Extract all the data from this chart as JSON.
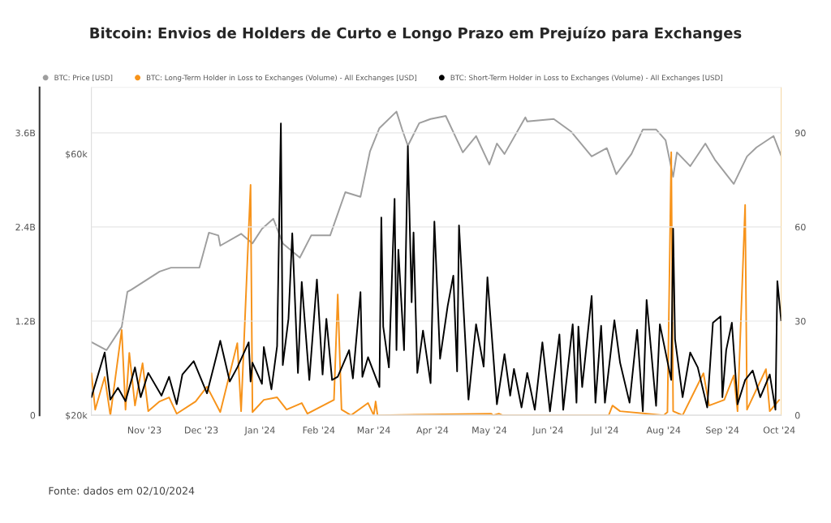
{
  "chart_data": {
    "type": "line",
    "title": "Bitcoin: Envios de Holders de Curto e Longo Prazo em Prejuízo para Exchanges",
    "annotations": [
      "Fonte: dados em 02/10/2024"
    ],
    "series": [
      {
        "name": "BTC: Price [USD]",
        "color": "#9e9e9e",
        "axis": "y3",
        "x": [
          "2023-10-04",
          "2023-10-12",
          "2023-10-20",
          "2023-10-23",
          "2023-10-25",
          "2023-11-09",
          "2023-11-15",
          "2023-11-30",
          "2023-12-05",
          "2023-12-10",
          "2023-12-11",
          "2023-12-22",
          "2023-12-28",
          "2024-01-02",
          "2024-01-08",
          "2024-01-13",
          "2024-01-22",
          "2024-01-28",
          "2024-02-07",
          "2024-02-15",
          "2024-02-23",
          "2024-02-28",
          "2024-03-04",
          "2024-03-13",
          "2024-03-16",
          "2024-03-19",
          "2024-03-25",
          "2024-03-31",
          "2024-04-08",
          "2024-04-17",
          "2024-04-24",
          "2024-05-01",
          "2024-05-05",
          "2024-05-09",
          "2024-05-20",
          "2024-05-21",
          "2024-06-04",
          "2024-06-13",
          "2024-06-24",
          "2024-07-02",
          "2024-07-07",
          "2024-07-15",
          "2024-07-21",
          "2024-07-28",
          "2024-08-02",
          "2024-08-06",
          "2024-08-08",
          "2024-08-15",
          "2024-08-23",
          "2024-08-28",
          "2024-09-07",
          "2024-09-14",
          "2024-09-19",
          "2024-09-28",
          "2024-10-02"
        ],
        "values": [
          27200,
          26300,
          29000,
          33600,
          33900,
          36600,
          37200,
          37200,
          43100,
          42600,
          40800,
          42900,
          41200,
          43800,
          45700,
          41200,
          38800,
          42600,
          42600,
          51100,
          50100,
          60600,
          66900,
          71700,
          66500,
          62100,
          68300,
          69500,
          70400,
          60400,
          64700,
          57400,
          62700,
          60000,
          70000,
          68800,
          69500,
          66000,
          59400,
          61500,
          55100,
          60000,
          66500,
          66500,
          63600,
          54500,
          60400,
          57000,
          62700,
          58600,
          52900,
          59400,
          61700,
          64700,
          59600
        ]
      },
      {
        "name": "BTC: Long-Term Holder in Loss to Exchanges (Volume) - All Exchanges [USD]",
        "color": "#f7931a",
        "axis": "y2",
        "x": [
          "2023-10-04",
          "2023-10-06",
          "2023-10-11",
          "2023-10-14",
          "2023-10-20",
          "2023-10-22",
          "2023-10-24",
          "2023-10-27",
          "2023-10-31",
          "2023-11-03",
          "2023-11-09",
          "2023-11-14",
          "2023-11-18",
          "2023-11-28",
          "2023-12-04",
          "2023-12-11",
          "2023-12-20",
          "2023-12-22",
          "2023-12-27",
          "2023-12-28",
          "2024-01-03",
          "2024-01-10",
          "2024-01-15",
          "2024-01-23",
          "2024-01-26",
          "2024-02-09",
          "2024-02-11",
          "2024-02-13",
          "2024-02-18",
          "2024-02-27",
          "2024-03-01",
          "2024-03-02",
          "2024-03-03",
          "2024-05-02",
          "2024-05-03",
          "2024-05-06",
          "2024-05-08",
          "2024-07-03",
          "2024-07-05",
          "2024-07-09",
          "2024-08-01",
          "2024-08-03",
          "2024-08-05",
          "2024-08-06",
          "2024-08-11",
          "2024-08-22",
          "2024-08-25",
          "2024-09-02",
          "2024-09-07",
          "2024-09-09",
          "2024-09-13",
          "2024-09-14",
          "2024-09-24",
          "2024-09-26",
          "2024-10-01"
        ],
        "values": [
          13.4,
          1.8,
          12.2,
          0,
          27.2,
          1.8,
          19.9,
          3.1,
          16.6,
          1.3,
          4.4,
          5.7,
          0.5,
          4.4,
          9.1,
          1.0,
          23.0,
          1.3,
          73.4,
          1.0,
          4.9,
          5.7,
          1.8,
          3.9,
          0.5,
          4.9,
          38.5,
          1.8,
          0,
          3.9,
          0,
          4.4,
          0,
          0.5,
          0,
          0.5,
          0,
          0,
          3.1,
          1.3,
          0,
          1.0,
          83.8,
          1.3,
          0,
          13.4,
          3.1,
          4.9,
          12.7,
          1.3,
          67.0,
          1.8,
          14.7,
          1.3,
          4.9
        ]
      },
      {
        "name": "BTC: Short-Term Holder in Loss to Exchanges (Volume) - All Exchanges [USD]",
        "color": "#000000",
        "axis": "y",
        "x": [
          "2023-10-04",
          "2023-10-11",
          "2023-10-14",
          "2023-10-18",
          "2023-10-22",
          "2023-10-27",
          "2023-10-30",
          "2023-11-03",
          "2023-11-10",
          "2023-11-14",
          "2023-11-18",
          "2023-11-21",
          "2023-11-27",
          "2023-12-04",
          "2023-12-08",
          "2023-12-11",
          "2023-12-16",
          "2023-12-20",
          "2023-12-26",
          "2023-12-27",
          "2023-12-28",
          "2024-01-02",
          "2024-01-03",
          "2024-01-07",
          "2024-01-10",
          "2024-01-12",
          "2024-01-13",
          "2024-01-16",
          "2024-01-18",
          "2024-01-21",
          "2024-01-23",
          "2024-01-27",
          "2024-01-31",
          "2024-02-03",
          "2024-02-05",
          "2024-02-08",
          "2024-02-11",
          "2024-02-17",
          "2024-02-19",
          "2024-02-23",
          "2024-02-24",
          "2024-02-27",
          "2024-03-04",
          "2024-03-05",
          "2024-03-06",
          "2024-03-09",
          "2024-03-12",
          "2024-03-13",
          "2024-03-14",
          "2024-03-17",
          "2024-03-19",
          "2024-03-21",
          "2024-03-22",
          "2024-03-24",
          "2024-03-27",
          "2024-03-31",
          "2024-04-02",
          "2024-04-05",
          "2024-04-09",
          "2024-04-12",
          "2024-04-14",
          "2024-04-15",
          "2024-04-20",
          "2024-04-24",
          "2024-04-28",
          "2024-04-30",
          "2024-05-05",
          "2024-05-09",
          "2024-05-12",
          "2024-05-14",
          "2024-05-18",
          "2024-05-21",
          "2024-05-25",
          "2024-05-29",
          "2024-06-02",
          "2024-06-07",
          "2024-06-09",
          "2024-06-14",
          "2024-06-16",
          "2024-06-17",
          "2024-06-19",
          "2024-06-24",
          "2024-06-26",
          "2024-06-29",
          "2024-07-01",
          "2024-07-06",
          "2024-07-09",
          "2024-07-14",
          "2024-07-18",
          "2024-07-21",
          "2024-07-23",
          "2024-07-28",
          "2024-07-30",
          "2024-08-05",
          "2024-08-06",
          "2024-08-07",
          "2024-08-11",
          "2024-08-15",
          "2024-08-19",
          "2024-08-24",
          "2024-08-27",
          "2024-08-31",
          "2024-09-01",
          "2024-09-03",
          "2024-09-06",
          "2024-09-09",
          "2024-09-13",
          "2024-09-17",
          "2024-09-21",
          "2024-09-26",
          "2024-09-29",
          "2024-09-30",
          "2024-10-02"
        ],
        "values": [
          0.23,
          0.8,
          0.2,
          0.35,
          0.18,
          0.61,
          0.23,
          0.54,
          0.25,
          0.49,
          0.14,
          0.52,
          0.69,
          0.28,
          0.66,
          0.95,
          0.43,
          0.61,
          0.93,
          0.43,
          0.67,
          0.4,
          0.87,
          0.33,
          0.88,
          3.72,
          0.64,
          1.23,
          2.32,
          0.54,
          1.7,
          0.45,
          1.73,
          0.52,
          1.23,
          0.45,
          0.49,
          0.83,
          0.47,
          1.57,
          0.49,
          0.74,
          0.36,
          2.52,
          1.13,
          0.61,
          2.76,
          0.83,
          2.11,
          0.83,
          3.43,
          1.44,
          2.33,
          0.54,
          1.08,
          0.41,
          2.47,
          0.72,
          1.39,
          1.78,
          0.56,
          2.42,
          0.2,
          1.16,
          0.62,
          1.76,
          0.14,
          0.78,
          0.25,
          0.59,
          0.1,
          0.54,
          0.07,
          0.93,
          0.05,
          1.03,
          0.07,
          1.16,
          0.16,
          1.13,
          0.36,
          1.52,
          0.16,
          1.14,
          0.16,
          1.21,
          0.67,
          0.16,
          1.09,
          0.05,
          1.47,
          0.12,
          1.16,
          0.45,
          2.38,
          0.97,
          0.23,
          0.8,
          0.61,
          0.1,
          1.18,
          1.26,
          0.23,
          0.83,
          1.18,
          0.14,
          0.45,
          0.57,
          0.23,
          0.52,
          0.07,
          1.71,
          1.21
        ]
      }
    ],
    "xlim": [
      "2023-10-04",
      "2024-10-02"
    ],
    "xticks": [
      {
        "value": "2023-11-01",
        "label": "Nov '23"
      },
      {
        "value": "2023-12-01",
        "label": "Dec '23"
      },
      {
        "value": "2024-01-01",
        "label": "Jan '24"
      },
      {
        "value": "2024-02-01",
        "label": "Feb '24"
      },
      {
        "value": "2024-03-01",
        "label": "Mar '24"
      },
      {
        "value": "2024-04-01",
        "label": "Apr '24"
      },
      {
        "value": "2024-05-01",
        "label": "May '24"
      },
      {
        "value": "2024-06-01",
        "label": "Jun '24"
      },
      {
        "value": "2024-07-01",
        "label": "Jul '24"
      },
      {
        "value": "2024-08-01",
        "label": "Aug '24"
      },
      {
        "value": "2024-09-01",
        "label": "Sep '24"
      },
      {
        "value": "2024-10-01",
        "label": "Oct '24"
      }
    ],
    "ylim": [
      0,
      4.18
    ],
    "yticks": [
      0,
      {
        "value": 1.2,
        "label": "1.2B"
      },
      {
        "value": 2.4,
        "label": "2.4B"
      },
      {
        "value": 3.6,
        "label": "3.6B"
      }
    ],
    "y2lim": [
      0,
      104.5
    ],
    "y2ticks": [
      0,
      30,
      60,
      90
    ],
    "y3lim": [
      20000,
      79400
    ],
    "y3ticks": [
      {
        "value": 20000,
        "label": "$20k"
      },
      {
        "value": 60000,
        "label": "$60k"
      }
    ],
    "log": "y3",
    "grid": "y",
    "legend": "top left"
  }
}
